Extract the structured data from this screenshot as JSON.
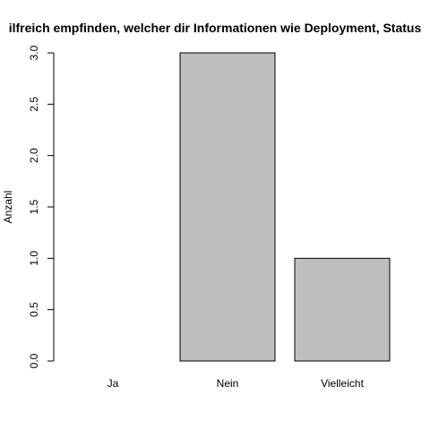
{
  "chart_data": {
    "type": "bar",
    "title": "ilfreich empfinden, welcher dir Informationen wie Deployment, Status",
    "xlabel": "",
    "ylabel": "Anzahl",
    "categories": [
      "Ja",
      "Nein",
      "Vielleicht"
    ],
    "values": [
      0,
      3,
      1
    ],
    "ylim": [
      0,
      3
    ],
    "yticks": [
      "0.0",
      "0.5",
      "1.0",
      "1.5",
      "2.0",
      "2.5",
      "3.0"
    ],
    "grid": false,
    "legend": "none",
    "bar_color": "#bebebe",
    "bar_border_color": "#000000"
  }
}
